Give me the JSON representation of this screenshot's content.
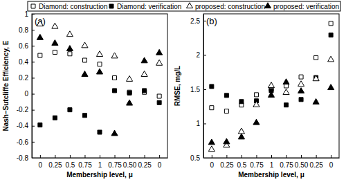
{
  "chart_data": [
    {
      "type": "scatter",
      "title": "(a)",
      "x_label": "Membership level, μ",
      "y_label": "Nash–Sutcliffe Efficiency, E",
      "categories": [
        "0",
        "0.25",
        "0.5",
        "0.75",
        "1",
        "0.75",
        "0.50",
        "0.25",
        "0"
      ],
      "ylim": [
        -0.8,
        1.0
      ],
      "yticks": [
        -0.8,
        -0.6,
        -0.4,
        -0.2,
        0,
        0.2,
        0.4,
        0.6,
        0.8,
        1
      ],
      "legend": "top",
      "series": [
        {
          "name": "Diamond: construction",
          "color": "#000000",
          "marker": "square-open",
          "values": [
            0.48,
            0.52,
            0.5,
            0.42,
            0.37,
            0.2,
            0.02,
            0.02,
            -0.03
          ]
        },
        {
          "name": "Diamond: verification",
          "color": "#000000",
          "marker": "square",
          "values": [
            -0.39,
            -0.3,
            -0.2,
            -0.27,
            -0.48,
            0.04,
            0.01,
            0.04,
            -0.11
          ]
        },
        {
          "name": "proposed: construction",
          "color": "#000000",
          "marker": "triangle-open",
          "values": [
            0.87,
            0.84,
            0.74,
            0.6,
            0.49,
            0.47,
            0.18,
            0.24,
            0.38
          ]
        },
        {
          "name": "proposed: verification",
          "color": "#000000",
          "marker": "triangle",
          "values": [
            0.7,
            0.63,
            0.56,
            0.24,
            0.27,
            -0.5,
            -0.12,
            0.41,
            0.51
          ]
        }
      ]
    },
    {
      "type": "scatter",
      "title": "(b)",
      "x_label": "Membership level, μ",
      "y_label": "RMSE, mg/L",
      "categories": [
        "0",
        "0.25",
        "0.5",
        "0.75",
        "1",
        "0.75",
        "0.50",
        "0.25",
        "0"
      ],
      "ylim": [
        0.5,
        2.6
      ],
      "yticks": [
        0.5,
        1,
        1.5,
        2,
        2.5
      ],
      "series": [
        {
          "color": "#000000",
          "marker": "square-open",
          "values": [
            1.23,
            1.18,
            1.27,
            1.42,
            1.5,
            1.55,
            1.68,
            1.96,
            2.46
          ]
        },
        {
          "color": "#000000",
          "marker": "square",
          "values": [
            1.54,
            1.41,
            1.32,
            1.33,
            1.48,
            1.27,
            1.35,
            1.67,
            2.29
          ]
        },
        {
          "color": "#000000",
          "marker": "triangle-open",
          "values": [
            0.62,
            0.68,
            0.88,
            1.27,
            1.55,
            1.45,
            1.57,
            1.65,
            1.93
          ]
        },
        {
          "color": "#000000",
          "marker": "triangle",
          "values": [
            0.72,
            0.73,
            0.8,
            1.01,
            1.41,
            1.6,
            1.47,
            1.31,
            1.52
          ]
        }
      ]
    }
  ]
}
